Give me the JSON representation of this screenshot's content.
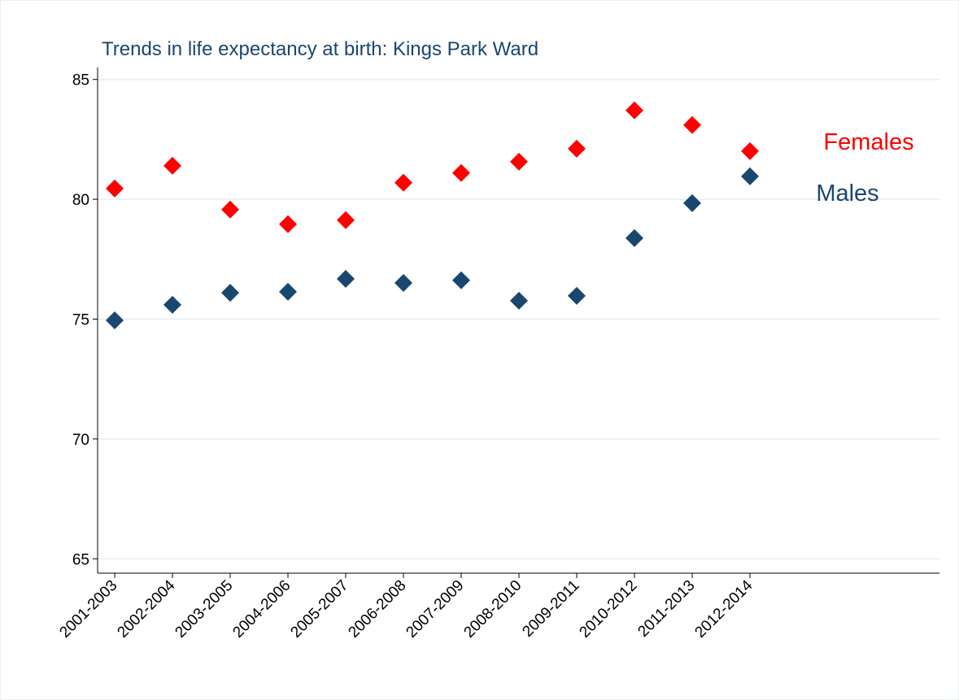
{
  "chart_data": {
    "type": "scatter",
    "title": "Trends in life expectancy at birth: Kings Park Ward",
    "categories": [
      "2001-2003",
      "2002-2004",
      "2003-2005",
      "2004-2006",
      "2005-2007",
      "2006-2008",
      "2007-2009",
      "2008-2010",
      "2009-2011",
      "2010-2012",
      "2011-2013",
      "2012-2014"
    ],
    "series": [
      {
        "name": "Females",
        "color": "#ff0000",
        "values": [
          80.45,
          81.4,
          79.57,
          78.96,
          79.13,
          80.69,
          81.1,
          81.57,
          82.11,
          83.71,
          83.1,
          82.01
        ]
      },
      {
        "name": "Males",
        "color": "#1a476f",
        "values": [
          74.95,
          75.6,
          76.1,
          76.14,
          76.68,
          76.51,
          76.62,
          75.77,
          75.97,
          78.38,
          79.84,
          80.96
        ]
      }
    ],
    "ylim": [
      64.4,
      85.5
    ],
    "yticks": [
      65,
      70,
      75,
      80,
      85
    ],
    "grid": true
  }
}
